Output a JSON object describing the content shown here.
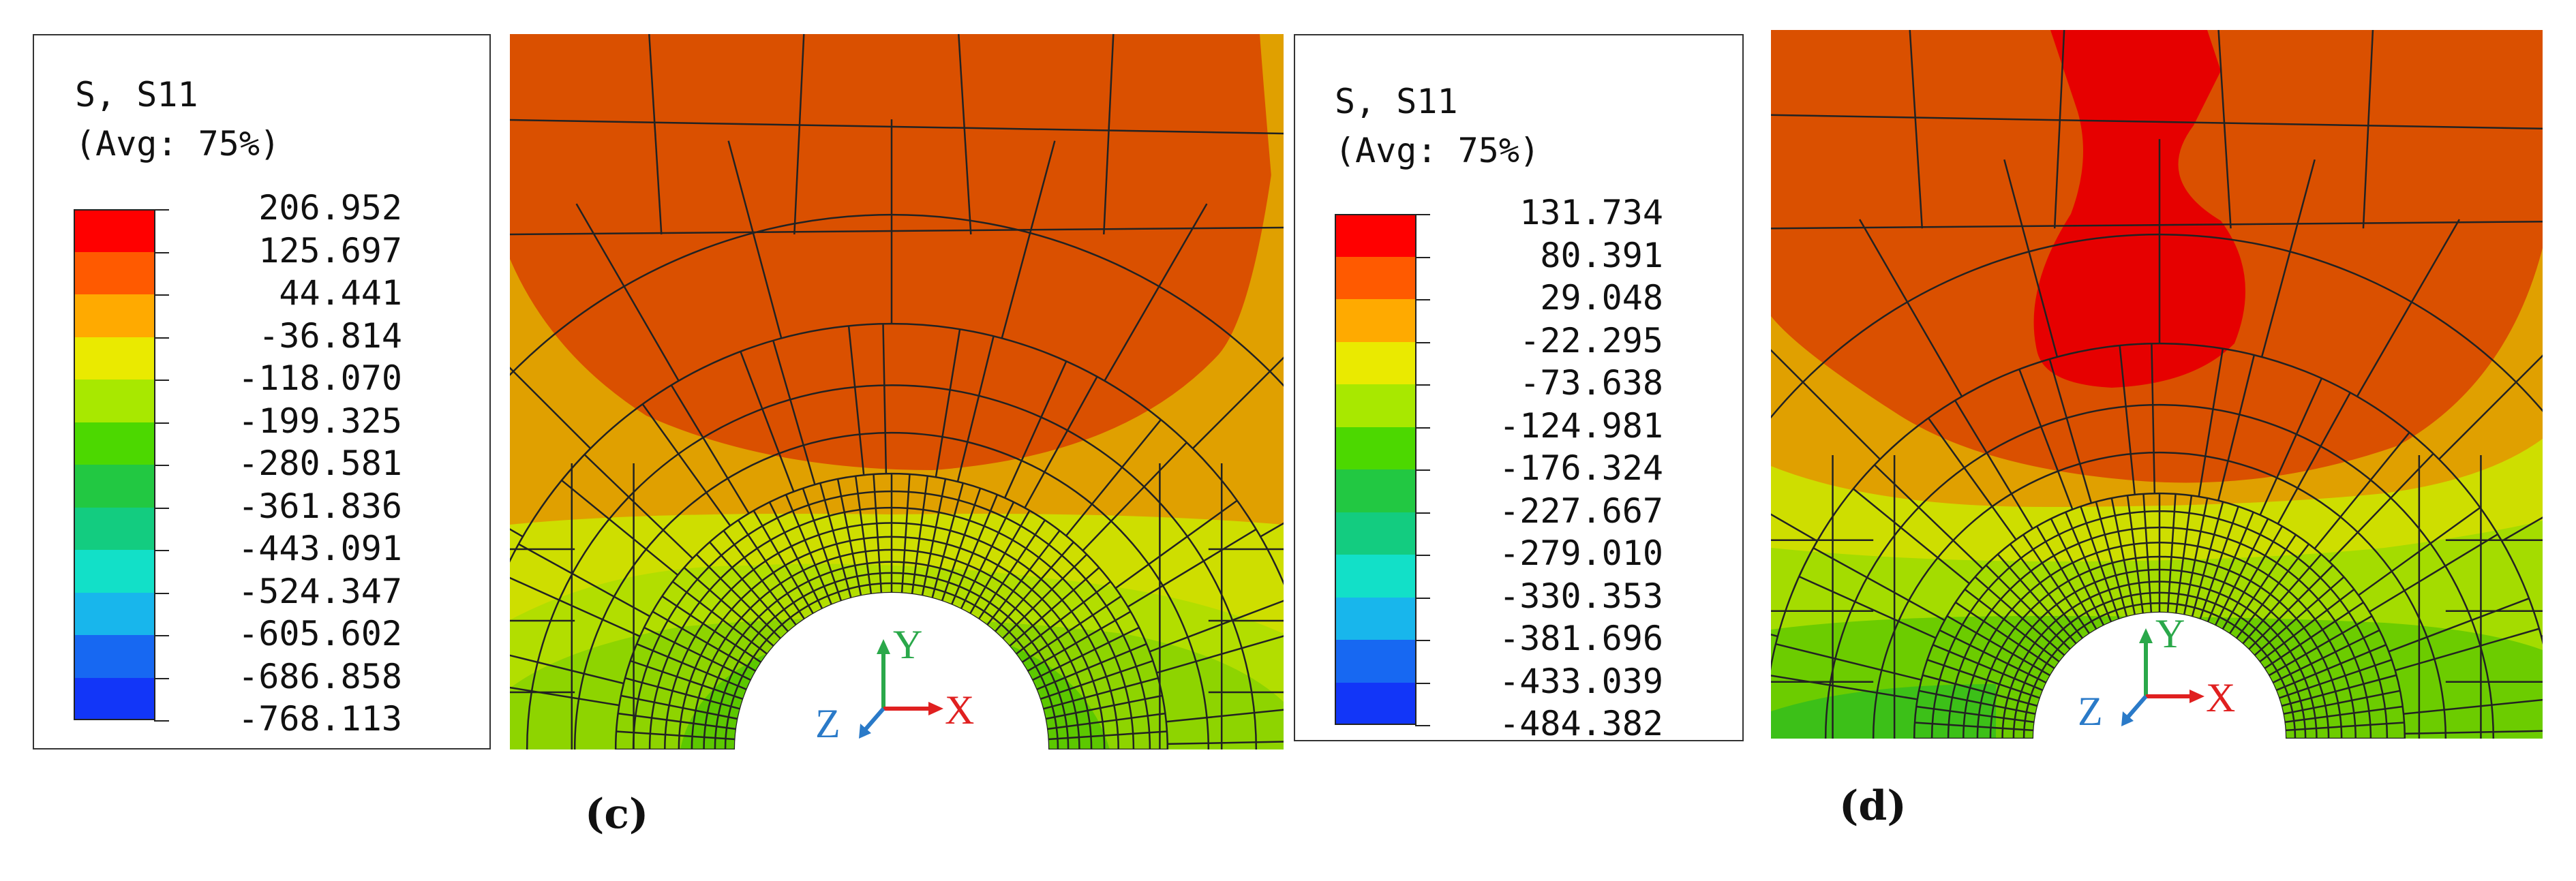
{
  "figure_c": {
    "caption": "(c)",
    "legend": {
      "title_line1": "S, S11",
      "title_line2": "(Avg: 75%)",
      "values": [
        "206.952",
        "125.697",
        "44.441",
        "-36.814",
        "-118.070",
        "-199.325",
        "-280.581",
        "-361.836",
        "-443.091",
        "-524.347",
        "-605.602",
        "-686.858",
        "-768.113"
      ]
    },
    "triad": {
      "y": "Y",
      "x": "X",
      "z": "Z"
    }
  },
  "figure_d": {
    "caption": "(d)",
    "legend": {
      "title_line1": "S, S11",
      "title_line2": "(Avg: 75%)",
      "values": [
        "131.734",
        "80.391",
        "29.048",
        "-22.295",
        "-73.638",
        "-124.981",
        "-176.324",
        "-227.667",
        "-279.010",
        "-330.353",
        "-381.696",
        "-433.039",
        "-484.382"
      ]
    },
    "triad": {
      "y": "Y",
      "x": "X",
      "z": "Z"
    }
  },
  "color_scale": [
    "#ff0000",
    "#ff5a00",
    "#ffaa00",
    "#eaea00",
    "#a8e800",
    "#4cd800",
    "#22c842",
    "#13cc80",
    "#12e0c8",
    "#18b6ec",
    "#1768f2",
    "#1236f8",
    "#0000ff"
  ],
  "triad_colors": {
    "y": "#2aa84a",
    "x": "#e02020",
    "z": "#2a7ac8"
  }
}
